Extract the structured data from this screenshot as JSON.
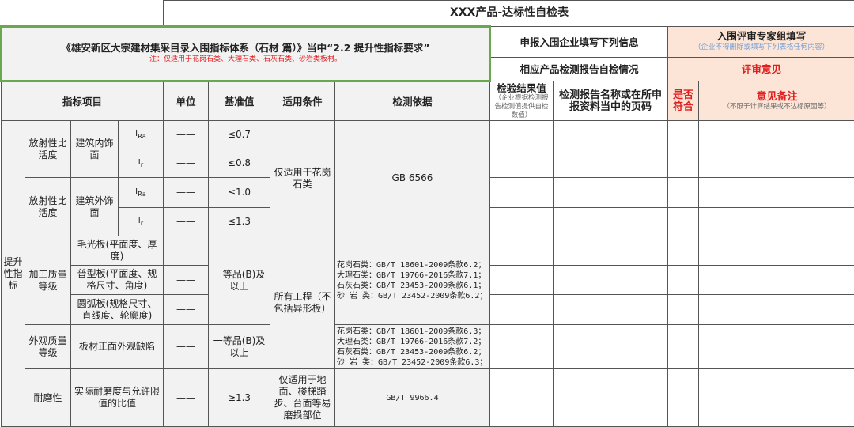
{
  "title": "XXX产品-达标性自检表",
  "header": {
    "main": "《雄安新区大宗建材集采目录入围指标体系（石材 篇）》当中“2.2 提升性指标要求”",
    "note": "注：仅适用于花岗石类、大理石类、石灰石类、砂岩类板材。",
    "enterprise": "申报入围企业填写下列信息",
    "expert": "入围评审专家组填写",
    "expert_note": "（企业不得删除或填写下列表格任何内容）",
    "self_check": "相应产品检测报告自检情况",
    "review": "评审意见"
  },
  "columns": {
    "item": "指标项目",
    "unit": "单位",
    "benchmark": "基准值",
    "condition": "适用条件",
    "basis": "检测依据",
    "result": "检验结果值",
    "result_note": "（企业根据检测报告检测值提供自检数值）",
    "report": "检测报告名称或在所申报资料当中的页码",
    "conform": "是否符合",
    "remark": "意见备注",
    "remark_note": "（不限于计算结果或不达标原因等）"
  },
  "category": "提升性指标",
  "rows": {
    "radio_in": "放射性比活度",
    "radio_out": "放射性比活度",
    "interior": "建筑内饰面",
    "exterior": "建筑外饰面",
    "ira": "I",
    "ira_sub": "Ra",
    "ir": "I",
    "ir_sub": "r",
    "dash": "——",
    "v1": "≤0.7",
    "v2": "≤0.8",
    "v3": "≤1.0",
    "v4": "≤1.3",
    "granite_only": "仅适用于花岗石类",
    "gb6566": "GB 6566",
    "processing": "加工质量等级",
    "p1": "毛光板(平面度、厚度)",
    "p2": "普型板(平面度、规格尺寸、角度)",
    "p3": "圆弧板(规格尺寸、直线度、轮廓度)",
    "grade1": "一等品(B)及以上",
    "all_works": "所有工程（不包括异形板）",
    "basis1": [
      "花岗石类：GB/T 18601-2009条款6.2；",
      "大理石类：GB/T 19766-2016条款7.1；",
      "石灰石类：GB/T 23453-2009条款6.1；",
      "砂 岩 类：GB/T 23452-2009条款6.2；"
    ],
    "appearance": "外观质量等级",
    "defect": "板材正面外观缺陷",
    "grade2": "一等品(B)及以上",
    "basis2": [
      "花岗石类：GB/T 18601-2009条款6.3；",
      "大理石类：GB/T 19766-2016条款7.2；",
      "石灰石类：GB/T 23453-2009条款6.2；",
      "砂 岩 类：GB/T 23452-2009条款6.3；"
    ],
    "wear": "耐磨性",
    "wear_item": "实际耐磨度与允许限值的比值",
    "v5": "≥1.3",
    "floor_only": "仅适用于地面、楼梯踏步、台面等易磨损部位",
    "gb9966": "GB/T 9966.4"
  },
  "colors": {
    "pink": "#fce4d6",
    "green_border": "#6aa84f",
    "red": "#e02020",
    "blue_note": "#6f9fd8"
  }
}
